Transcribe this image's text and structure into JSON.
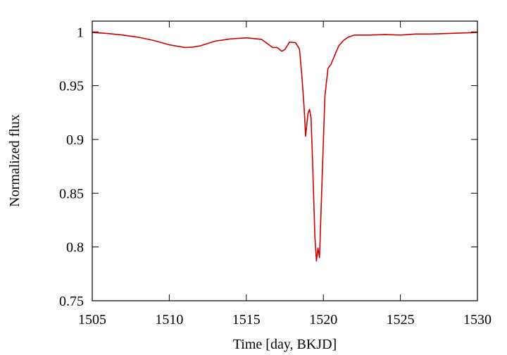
{
  "chart_data": {
    "type": "line",
    "title": "",
    "xlabel": "Time [day, BKJD]",
    "ylabel": "Normalized flux",
    "xlim": [
      1505,
      1530
    ],
    "ylim": [
      0.75,
      1.01
    ],
    "xticks": [
      1505,
      1510,
      1515,
      1520,
      1525,
      1530
    ],
    "yticks": [
      0.75,
      0.8,
      0.85,
      0.9,
      0.95,
      1
    ],
    "ytick_labels": [
      "0.75",
      "0.8",
      "0.85",
      "0.9",
      "0.95",
      "1"
    ],
    "grid": false,
    "legend": false,
    "series": [
      {
        "color": "#cc0000",
        "x": [
          1505,
          1506,
          1507,
          1508,
          1509,
          1510,
          1511,
          1511.5,
          1512,
          1513,
          1514,
          1515,
          1516,
          1516.7,
          1517,
          1517.3,
          1517.5,
          1517.8,
          1518.2,
          1518.45,
          1518.6,
          1518.75,
          1518.85,
          1519.0,
          1519.1,
          1519.2,
          1519.3,
          1519.45,
          1519.55,
          1519.65,
          1519.75,
          1519.9,
          1520.1,
          1520.3,
          1520.5,
          1520.7,
          1521.0,
          1521.3,
          1521.6,
          1522,
          1523,
          1524,
          1525,
          1526,
          1527,
          1528,
          1529,
          1530
        ],
        "y": [
          0.9995,
          0.9985,
          0.997,
          0.995,
          0.992,
          0.988,
          0.9855,
          0.9858,
          0.987,
          0.9915,
          0.9935,
          0.9945,
          0.993,
          0.9855,
          0.9855,
          0.982,
          0.9835,
          0.9905,
          0.99,
          0.984,
          0.96,
          0.93,
          0.903,
          0.924,
          0.928,
          0.92,
          0.88,
          0.81,
          0.787,
          0.799,
          0.79,
          0.855,
          0.94,
          0.966,
          0.97,
          0.977,
          0.987,
          0.992,
          0.995,
          0.997,
          0.997,
          0.9975,
          0.997,
          0.998,
          0.998,
          0.9985,
          0.999,
          0.9995
        ]
      }
    ]
  }
}
